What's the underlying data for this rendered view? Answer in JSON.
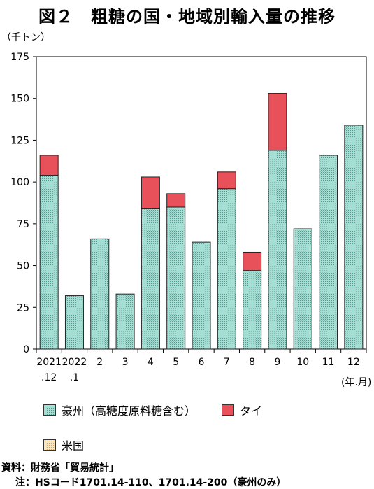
{
  "title": "図２　粗糖の国・地域別輸入量の推移",
  "colors": {
    "aus": "#a8ddd4",
    "thai": "#e8515a",
    "us": "#f5deb3"
  },
  "chart_data": {
    "type": "bar",
    "stacked": true,
    "unit_label": "（千トン）",
    "x_unit_label": "(年.月)",
    "categories": [
      [
        "2021",
        ".12"
      ],
      [
        "2022",
        ".1"
      ],
      [
        "2"
      ],
      [
        "3"
      ],
      [
        "4"
      ],
      [
        "5"
      ],
      [
        "6"
      ],
      [
        "7"
      ],
      [
        "8"
      ],
      [
        "9"
      ],
      [
        "10"
      ],
      [
        "11"
      ],
      [
        "12"
      ]
    ],
    "ylim": [
      0,
      175
    ],
    "yticks": [
      0,
      25,
      50,
      75,
      100,
      125,
      150,
      175
    ],
    "grid": false,
    "series": [
      {
        "name": "豪州（高糖度原料糖含む）",
        "values": [
          104,
          32,
          66,
          33,
          84,
          85,
          64,
          96,
          47,
          119,
          72,
          116,
          134
        ]
      },
      {
        "name": "タイ",
        "values": [
          12,
          0,
          0,
          0,
          19,
          8,
          0,
          10,
          11,
          34,
          0,
          0,
          0
        ]
      },
      {
        "name": "米国",
        "values": [
          0,
          0,
          0,
          0,
          0,
          0,
          0,
          0,
          0,
          0,
          0,
          0,
          0
        ]
      }
    ]
  },
  "notes": {
    "source": "資料：財務省「貿易統計」",
    "hs": "注：HSコード1701.14-110、1701.14-200（豪州のみ）"
  }
}
